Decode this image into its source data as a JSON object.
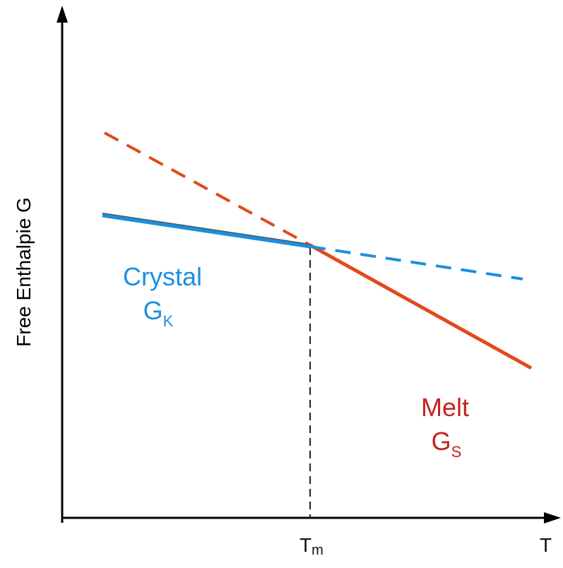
{
  "axes": {
    "y_label": "Free Enthalpie G",
    "x_label": "T",
    "tm_label": {
      "main": "T",
      "sub": "m"
    }
  },
  "crystal": {
    "name": "Crystal",
    "symbol": {
      "main": "G",
      "sub": "K"
    },
    "color": "#1a8fe0"
  },
  "melt": {
    "name": "Melt",
    "symbol": {
      "main": "G",
      "sub": "S"
    },
    "color": "#e04a1c",
    "text_color": "#c82020"
  },
  "axis_color": "#000000",
  "guide_color": "#222222"
}
